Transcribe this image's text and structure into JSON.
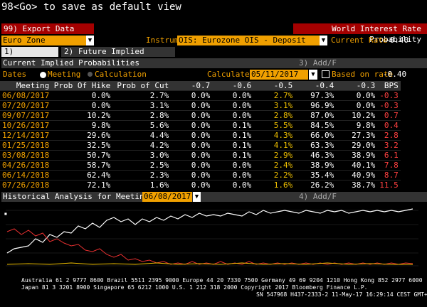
{
  "command": "98<Go> to save as default view",
  "export_button": "99) Export Data",
  "window_title": "World Interest Rate Probability",
  "region": "Euro Zone",
  "instrument_label": "Instrument",
  "instrument": "OIS: Eurozone OIS - Deposit",
  "current_rate_label": "Current Rate",
  "current_rate": "-0.40",
  "tabs": [
    "1) Overview",
    "2) Future Implied Probability"
  ],
  "panel": {
    "title": "Current Implied Probabilities",
    "add": "3) Add/F"
  },
  "dates_label": "Dates",
  "option_meeting": "Meeting",
  "option_calculation": "Calculation",
  "calculated_label": "Calculated",
  "calculated_date": "05/11/2017",
  "based_on_rate_label": "Based on rate",
  "based_on_rate": "-0.40",
  "table": {
    "headers": [
      "Meeting",
      "Prob Of Hike",
      "Prob of Cut",
      "-0.7",
      "-0.6",
      "-0.5",
      "-0.4",
      "-0.3",
      "BPS"
    ],
    "rows": [
      [
        "06/08/2017",
        "0.0%",
        "2.7%",
        "0.0%",
        "0.0%",
        "2.7%",
        "97.3%",
        "0.0%",
        "-0.3"
      ],
      [
        "07/20/2017",
        "0.0%",
        "3.1%",
        "0.0%",
        "0.0%",
        "3.1%",
        "96.9%",
        "0.0%",
        "-0.3"
      ],
      [
        "09/07/2017",
        "10.2%",
        "2.8%",
        "0.0%",
        "0.0%",
        "2.8%",
        "87.0%",
        "10.2%",
        "0.7"
      ],
      [
        "10/26/2017",
        "9.8%",
        "5.6%",
        "0.0%",
        "0.1%",
        "5.5%",
        "84.5%",
        "9.8%",
        "0.4"
      ],
      [
        "12/14/2017",
        "29.6%",
        "4.4%",
        "0.0%",
        "0.1%",
        "4.3%",
        "66.0%",
        "27.3%",
        "2.8"
      ],
      [
        "01/25/2018",
        "32.5%",
        "4.2%",
        "0.0%",
        "0.1%",
        "4.1%",
        "63.3%",
        "29.0%",
        "3.2"
      ],
      [
        "03/08/2018",
        "50.7%",
        "3.0%",
        "0.0%",
        "0.1%",
        "2.9%",
        "46.3%",
        "38.9%",
        "6.1"
      ],
      [
        "04/26/2018",
        "58.7%",
        "2.5%",
        "0.0%",
        "0.0%",
        "2.4%",
        "38.9%",
        "40.1%",
        "7.8"
      ],
      [
        "06/14/2018",
        "62.4%",
        "2.3%",
        "0.0%",
        "0.0%",
        "2.2%",
        "35.4%",
        "40.9%",
        "8.7"
      ],
      [
        "07/26/2018",
        "72.1%",
        "1.6%",
        "0.0%",
        "0.0%",
        "1.6%",
        "26.2%",
        "38.7%",
        "11.5"
      ]
    ]
  },
  "history": {
    "title": "Historical Analysis for Meeting",
    "meeting": "06/08/2017",
    "add": "4) Add/F"
  },
  "footer": {
    "line1": "Australia 61 2 9777 8600 Brazil 5511 2395 9000 Europe 44 20 7330 7500 Germany 49 69 9204 1210 Hong Kong 852 2977 6000",
    "line2": "Japan 81 3 3201 8900     Singapore 65 6212 1000     U.S. 1 212 318 2000          Copyright 2017 Bloomberg Finance L.P.",
    "line3": "SN 547968 H437-2333-2 11-May-17 16:29:14 CEST GMT+2:00"
  },
  "colors": {
    "accent": "#f0a000",
    "header_red": "#a50000",
    "series_white": "#ffffff",
    "series_yellow": "#f0c000",
    "series_red": "#e83030"
  }
}
